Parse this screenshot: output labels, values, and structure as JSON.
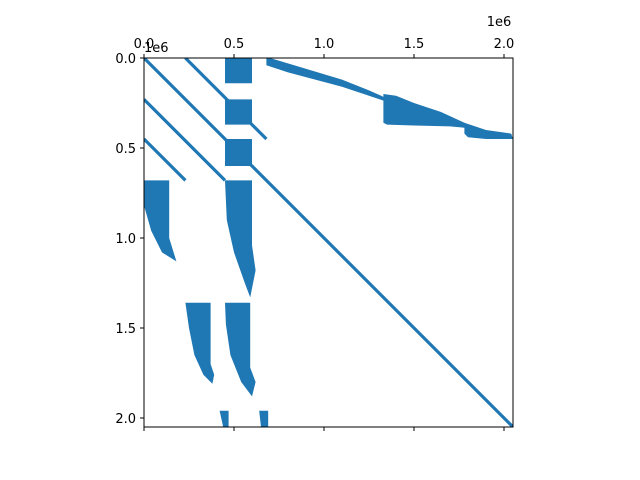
{
  "chart_data": {
    "type": "sparsity-pattern",
    "title": "",
    "xlabel": "",
    "ylabel": "",
    "matrix_size": [
      2050000,
      2050000
    ],
    "xlim": [
      0,
      2050000
    ],
    "ylim": [
      2050000,
      0
    ],
    "x_axis_position": "top",
    "y_axis_inverted": true,
    "x_ticks": [
      0,
      500000,
      1000000,
      1500000,
      2000000
    ],
    "x_tick_labels": [
      "0.0",
      "0.5",
      "1.0",
      "1.5",
      "2.0"
    ],
    "y_ticks": [
      0,
      500000,
      1000000,
      1500000,
      2000000
    ],
    "y_tick_labels": [
      "0.0",
      "0.5",
      "1.0",
      "1.5",
      "2.0"
    ],
    "x_offset_label": "1e6",
    "y_offset_label": "1e6",
    "marker_color": "#1f77b4",
    "grid": false,
    "diagonal_bands": [
      {
        "x0": 0,
        "y0": 0,
        "x1": 2050000,
        "y1": 2050000
      },
      {
        "x0": 230000,
        "y0": 0,
        "x1": 680000,
        "y1": 450000
      },
      {
        "x0": 0,
        "y0": 230000,
        "x1": 450000,
        "y1": 680000
      },
      {
        "x0": 0,
        "y0": 450000,
        "x1": 230000,
        "y1": 680000
      }
    ],
    "dense_regions": [
      {
        "name": "upper-fan-1",
        "points": [
          [
            680000,
            0
          ],
          [
            700000,
            0
          ],
          [
            1100000,
            120000
          ],
          [
            1250000,
            180000
          ],
          [
            1340000,
            220000
          ],
          [
            1340000,
            240000
          ],
          [
            1250000,
            210000
          ],
          [
            1100000,
            160000
          ],
          [
            800000,
            80000
          ],
          [
            680000,
            40000
          ]
        ]
      },
      {
        "name": "upper-fan-2",
        "points": [
          [
            1330000,
            200000
          ],
          [
            1400000,
            210000
          ],
          [
            1500000,
            250000
          ],
          [
            1650000,
            300000
          ],
          [
            1780000,
            360000
          ],
          [
            1810000,
            390000
          ],
          [
            1700000,
            380000
          ],
          [
            1500000,
            375000
          ],
          [
            1350000,
            370000
          ],
          [
            1330000,
            360000
          ]
        ]
      },
      {
        "name": "upper-fan-3",
        "points": [
          [
            1780000,
            360000
          ],
          [
            1900000,
            400000
          ],
          [
            2040000,
            420000
          ],
          [
            2050000,
            450000
          ],
          [
            1900000,
            450000
          ],
          [
            1800000,
            440000
          ],
          [
            1780000,
            420000
          ]
        ]
      },
      {
        "name": "block-a-top",
        "points": [
          [
            450000,
            0
          ],
          [
            600000,
            0
          ],
          [
            600000,
            140000
          ],
          [
            450000,
            140000
          ]
        ]
      },
      {
        "name": "block-a-mid",
        "points": [
          [
            450000,
            230000
          ],
          [
            600000,
            230000
          ],
          [
            600000,
            370000
          ],
          [
            450000,
            370000
          ]
        ]
      },
      {
        "name": "block-a-low",
        "points": [
          [
            450000,
            450000
          ],
          [
            600000,
            450000
          ],
          [
            600000,
            600000
          ],
          [
            450000,
            600000
          ]
        ]
      },
      {
        "name": "lower-fan-1",
        "points": [
          [
            0,
            680000
          ],
          [
            140000,
            680000
          ],
          [
            140000,
            1000000
          ],
          [
            180000,
            1130000
          ],
          [
            100000,
            1080000
          ],
          [
            40000,
            960000
          ],
          [
            0,
            820000
          ]
        ]
      },
      {
        "name": "lower-fan-2",
        "points": [
          [
            450000,
            680000
          ],
          [
            600000,
            680000
          ],
          [
            600000,
            1040000
          ],
          [
            620000,
            1180000
          ],
          [
            590000,
            1330000
          ],
          [
            560000,
            1250000
          ],
          [
            500000,
            1080000
          ],
          [
            460000,
            900000
          ]
        ]
      },
      {
        "name": "lower-fan-3",
        "points": [
          [
            230000,
            1360000
          ],
          [
            370000,
            1360000
          ],
          [
            370000,
            1700000
          ],
          [
            390000,
            1760000
          ],
          [
            380000,
            1810000
          ],
          [
            330000,
            1760000
          ],
          [
            280000,
            1650000
          ],
          [
            250000,
            1500000
          ]
        ]
      },
      {
        "name": "lower-fan-4",
        "points": [
          [
            450000,
            1360000
          ],
          [
            590000,
            1360000
          ],
          [
            590000,
            1720000
          ],
          [
            620000,
            1800000
          ],
          [
            600000,
            1880000
          ],
          [
            540000,
            1800000
          ],
          [
            480000,
            1650000
          ],
          [
            455000,
            1480000
          ]
        ]
      },
      {
        "name": "bottom-strip-1",
        "points": [
          [
            420000,
            1960000
          ],
          [
            470000,
            1960000
          ],
          [
            470000,
            2050000
          ],
          [
            440000,
            2050000
          ]
        ]
      },
      {
        "name": "bottom-strip-2",
        "points": [
          [
            640000,
            1960000
          ],
          [
            690000,
            1960000
          ],
          [
            690000,
            2050000
          ],
          [
            650000,
            2050000
          ]
        ]
      }
    ]
  }
}
